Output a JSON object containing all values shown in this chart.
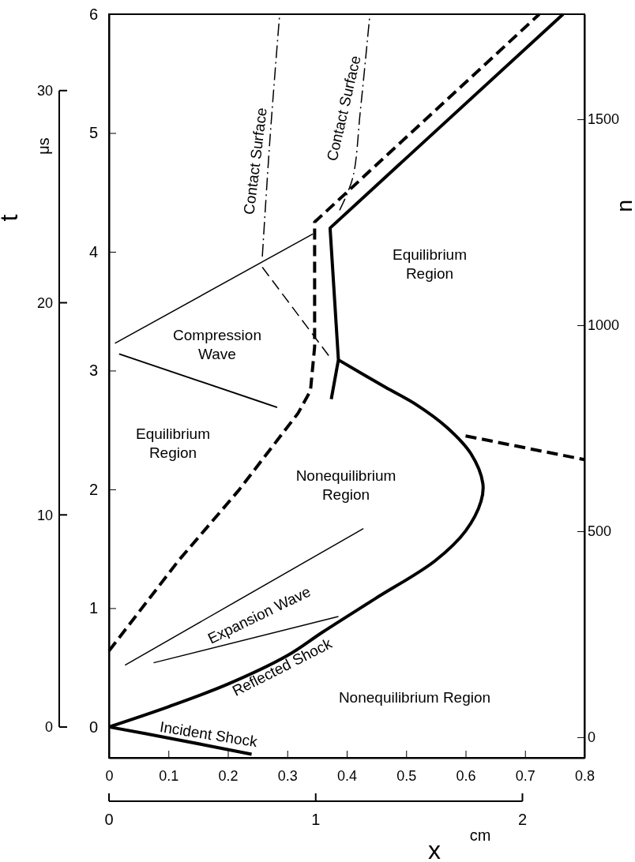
{
  "chart_data": {
    "type": "line",
    "xlim": [
      0,
      0.8
    ],
    "xticks": [
      0,
      0.1,
      0.2,
      0.3,
      0.4,
      0.5,
      0.6,
      0.7,
      0.8
    ],
    "ylim": [
      -0.26,
      6
    ],
    "yticks": [
      0,
      1,
      2,
      3,
      4,
      5,
      6
    ],
    "y2lim": [
      -50,
      1755
    ],
    "y2ticks": [
      0,
      500,
      1000,
      1500
    ],
    "y2label": "u",
    "y3lim": [
      -1.45,
      33.6
    ],
    "y3ticks": [
      0,
      10,
      20,
      30
    ],
    "y3label": "t",
    "x2lim": [
      0,
      2.3
    ],
    "x2ticks": [
      0,
      1,
      2
    ],
    "x2label": "x",
    "series": [
      {
        "color": "#000000",
        "line_style": "solid",
        "x": [
          0,
          0.097,
          0.24
        ],
        "values": [
          0,
          -0.09,
          -0.23
        ]
      },
      {
        "color": "#000000",
        "line_style": "solid",
        "x": [
          0,
          0.1,
          0.2,
          0.3,
          0.36,
          0.448,
          0.549,
          0.6,
          0.626,
          0.629,
          0.609,
          0.569,
          0.515,
          0.465,
          0.386
        ],
        "values": [
          0,
          0.17,
          0.36,
          0.6,
          0.8,
          1.08,
          1.4,
          1.65,
          1.9,
          2.05,
          2.3,
          2.52,
          2.72,
          2.86,
          3.09
        ]
      },
      {
        "color": "#000000",
        "line_style": "solid",
        "x": [
          0.374,
          0.386,
          0.372,
          0.764
        ],
        "values": [
          2.76,
          3.09,
          4.2,
          6
        ]
      },
      {
        "color": "#000000",
        "line_style": "dashed",
        "x": [
          0,
          0.117,
          0.218,
          0.318,
          0.339,
          0.346,
          0.346,
          0.724
        ],
        "values": [
          0.64,
          1.4,
          1.99,
          2.64,
          2.83,
          3.2,
          4.25,
          6
        ]
      },
      {
        "color": "#000000",
        "line_style": "dashed",
        "x": [
          0.6,
          0.8
        ],
        "values": [
          2.45,
          2.25
        ]
      },
      {
        "color": "#000000",
        "line_style": "solid",
        "x": [
          0.01,
          0.343
        ],
        "values": [
          3.23,
          4.15
        ]
      },
      {
        "color": "#000000",
        "line_style": "solid",
        "x": [
          0.017,
          0.283
        ],
        "values": [
          3.14,
          2.69
        ]
      },
      {
        "color": "#000000",
        "line_style": "dashed",
        "x": [
          0.258,
          0.372
        ],
        "values": [
          3.87,
          3.11
        ]
      },
      {
        "color": "#000000",
        "line_style": "dashdot",
        "x": [
          0.258,
          0.271,
          0.287
        ],
        "values": [
          3.96,
          4.96,
          5.99
        ]
      },
      {
        "color": "#000000",
        "line_style": "dashdot",
        "x": [
          0.388,
          0.41,
          0.423,
          0.439
        ],
        "values": [
          4.35,
          4.62,
          5.19,
          6
        ]
      },
      {
        "color": "#000000",
        "line_style": "solid",
        "x": [
          0.027,
          0.428
        ],
        "values": [
          0.52,
          1.67
        ]
      },
      {
        "color": "#000000",
        "line_style": "solid",
        "x": [
          0.075,
          0.386
        ],
        "values": [
          0.54,
          0.93
        ]
      }
    ],
    "annotations": [
      "Contact Surface",
      "Contact Surface",
      "Equilibrium Region",
      "Compression Wave",
      "Equilibrium Region",
      "Nonequilibrium Region",
      "Expansion Wave",
      "Reflected Shock",
      "Nonequilibrium Region",
      "Incident Shock",
      "μs",
      "cm"
    ]
  }
}
